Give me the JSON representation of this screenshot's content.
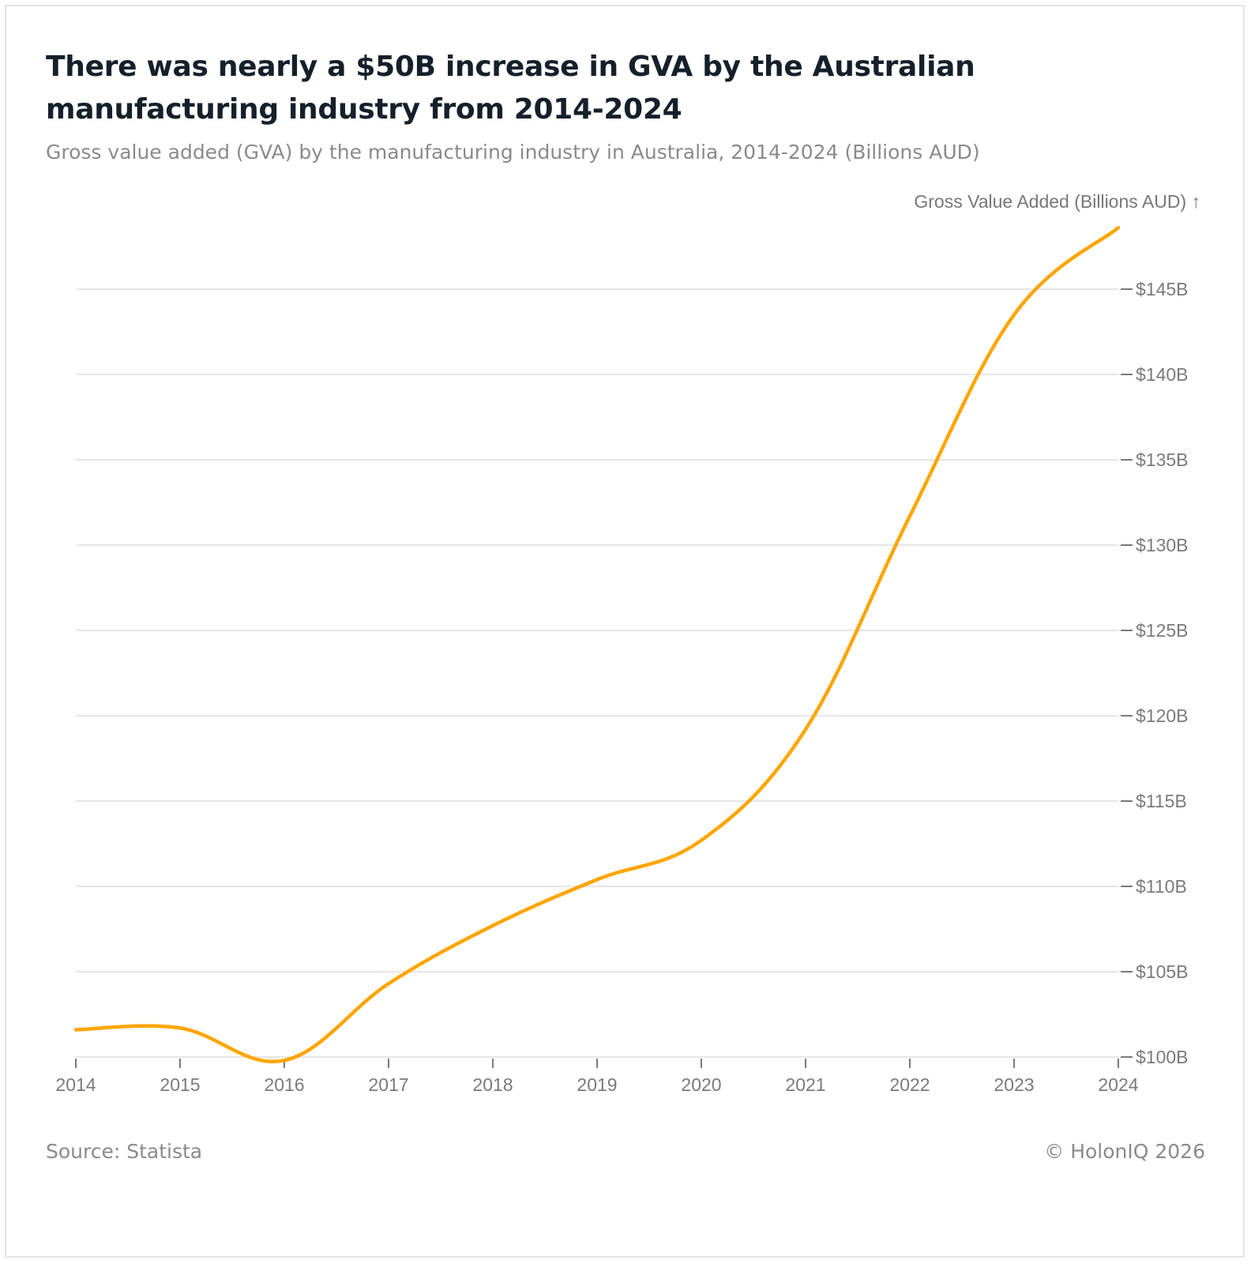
{
  "header": {
    "title": "There was nearly a $50B increase in GVA by the Australian manufacturing industry from 2014-2024",
    "subtitle": "Gross value added (GVA) by the manufacturing industry in Australia, 2014-2024 (Billions AUD)"
  },
  "footer": {
    "source": "Source: Statista",
    "copyright": "© HolonIQ 2026"
  },
  "colors": {
    "line": "#FFA500",
    "grid": "#e6e6e6",
    "axis_text": "#7a7a7a"
  },
  "chart_data": {
    "type": "line",
    "title": "There was nearly a $50B increase in GVA by the Australian manufacturing industry from 2014-2024",
    "subtitle": "Gross value added (GVA) by the manufacturing industry in Australia, 2014-2024 (Billions AUD)",
    "xlabel": "",
    "ylabel": "Gross Value Added (Billions AUD) ↑",
    "x": [
      2014,
      2015,
      2016,
      2017,
      2018,
      2019,
      2020,
      2021,
      2022,
      2023,
      2024
    ],
    "series": [
      {
        "name": "Gross Value Added (Billions AUD)",
        "values": [
          101.6,
          101.7,
          99.8,
          104.3,
          107.7,
          110.4,
          112.7,
          119.2,
          131.7,
          143.5,
          148.6
        ]
      }
    ],
    "x_ticks": [
      "2014",
      "2015",
      "2016",
      "2017",
      "2018",
      "2019",
      "2020",
      "2021",
      "2022",
      "2023",
      "2024"
    ],
    "y_ticks": [
      100,
      105,
      110,
      115,
      120,
      125,
      130,
      135,
      140,
      145
    ],
    "y_tick_labels": [
      "$100B",
      "$105B",
      "$110B",
      "$115B",
      "$120B",
      "$125B",
      "$130B",
      "$135B",
      "$140B",
      "$145B"
    ],
    "xlim": [
      2014,
      2024
    ],
    "ylim": [
      100,
      145
    ],
    "y_axis_side": "right",
    "grid": true,
    "legend": "none",
    "curve": "smooth"
  }
}
